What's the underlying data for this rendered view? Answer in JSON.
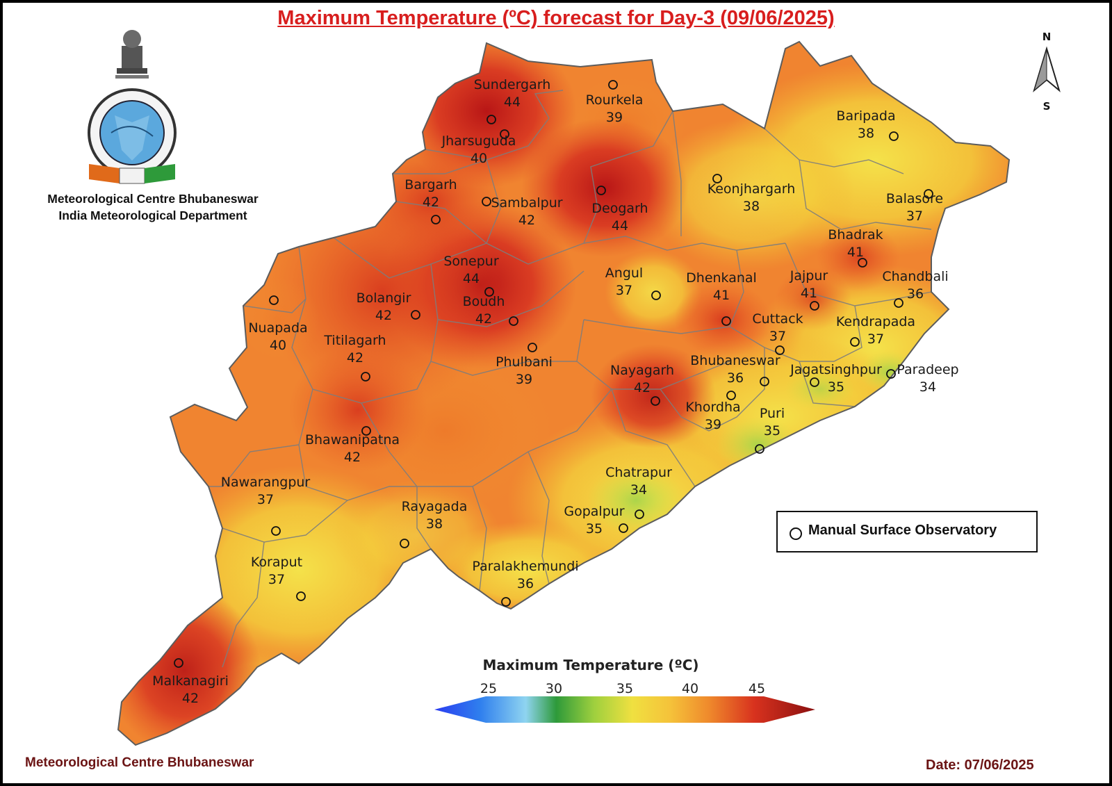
{
  "header": {
    "title": "Maximum Temperature (ºC) forecast for Day-3 (09/06/2025)",
    "centre_line1": "Meteorological Centre Bhubaneswar",
    "centre_line2": "India Meteorological Department"
  },
  "compass": {
    "north": "N",
    "south": "S"
  },
  "stations": [
    {
      "name": "Sundergarh",
      "temp": "44"
    },
    {
      "name": "Rourkela",
      "temp": "39"
    },
    {
      "name": "Jharsuguda",
      "temp": "40"
    },
    {
      "name": "Baripada",
      "temp": "38"
    },
    {
      "name": "Bargarh",
      "temp": "42"
    },
    {
      "name": "Sambalpur",
      "temp": "42"
    },
    {
      "name": "Deogarh",
      "temp": "44"
    },
    {
      "name": "Keonjhargarh",
      "temp": "38"
    },
    {
      "name": "Balasore",
      "temp": "37"
    },
    {
      "name": "Bhadrak",
      "temp": "41"
    },
    {
      "name": "Sonepur",
      "temp": "44"
    },
    {
      "name": "Angul",
      "temp": "37"
    },
    {
      "name": "Dhenkanal",
      "temp": "41"
    },
    {
      "name": "Jajpur",
      "temp": "41"
    },
    {
      "name": "Chandbali",
      "temp": "36"
    },
    {
      "name": "Bolangir",
      "temp": "42"
    },
    {
      "name": "Boudh",
      "temp": "42"
    },
    {
      "name": "Cuttack",
      "temp": "37"
    },
    {
      "name": "Kendrapada",
      "temp": "37"
    },
    {
      "name": "Nuapada",
      "temp": "40"
    },
    {
      "name": "Titilagarh",
      "temp": "42"
    },
    {
      "name": "Phulbani",
      "temp": "39"
    },
    {
      "name": "Bhubaneswar",
      "temp": "36"
    },
    {
      "name": "Nayagarh",
      "temp": "42"
    },
    {
      "name": "Jagatsinghpur",
      "temp": "35"
    },
    {
      "name": "Paradeep",
      "temp": "34"
    },
    {
      "name": "Khordha",
      "temp": "39"
    },
    {
      "name": "Puri",
      "temp": "35"
    },
    {
      "name": "Bhawanipatna",
      "temp": "42"
    },
    {
      "name": "Chatrapur",
      "temp": "34"
    },
    {
      "name": "Nawarangpur",
      "temp": "37"
    },
    {
      "name": "Rayagada",
      "temp": "38"
    },
    {
      "name": "Gopalpur",
      "temp": "35"
    },
    {
      "name": "Koraput",
      "temp": "37"
    },
    {
      "name": "Paralakhemundi",
      "temp": "36"
    },
    {
      "name": "Malkanagiri",
      "temp": "42"
    }
  ],
  "legend": {
    "label": "Manual Surface Observatory"
  },
  "colorbar": {
    "title": "Maximum Temperature (ºC)",
    "ticks": [
      "25",
      "30",
      "35",
      "40",
      "45"
    ],
    "min": 25,
    "max": 45
  },
  "colors": {
    "title_red": "#d81e1e",
    "footer_maroon": "#6b1414",
    "hot": "#c0201a",
    "warm": "#f07a2a",
    "mild": "#f6d441",
    "cool": "#b9dc48"
  },
  "footer": {
    "left": "Meteorological Centre Bhubaneswar",
    "right": "Date: 07/06/2025"
  }
}
